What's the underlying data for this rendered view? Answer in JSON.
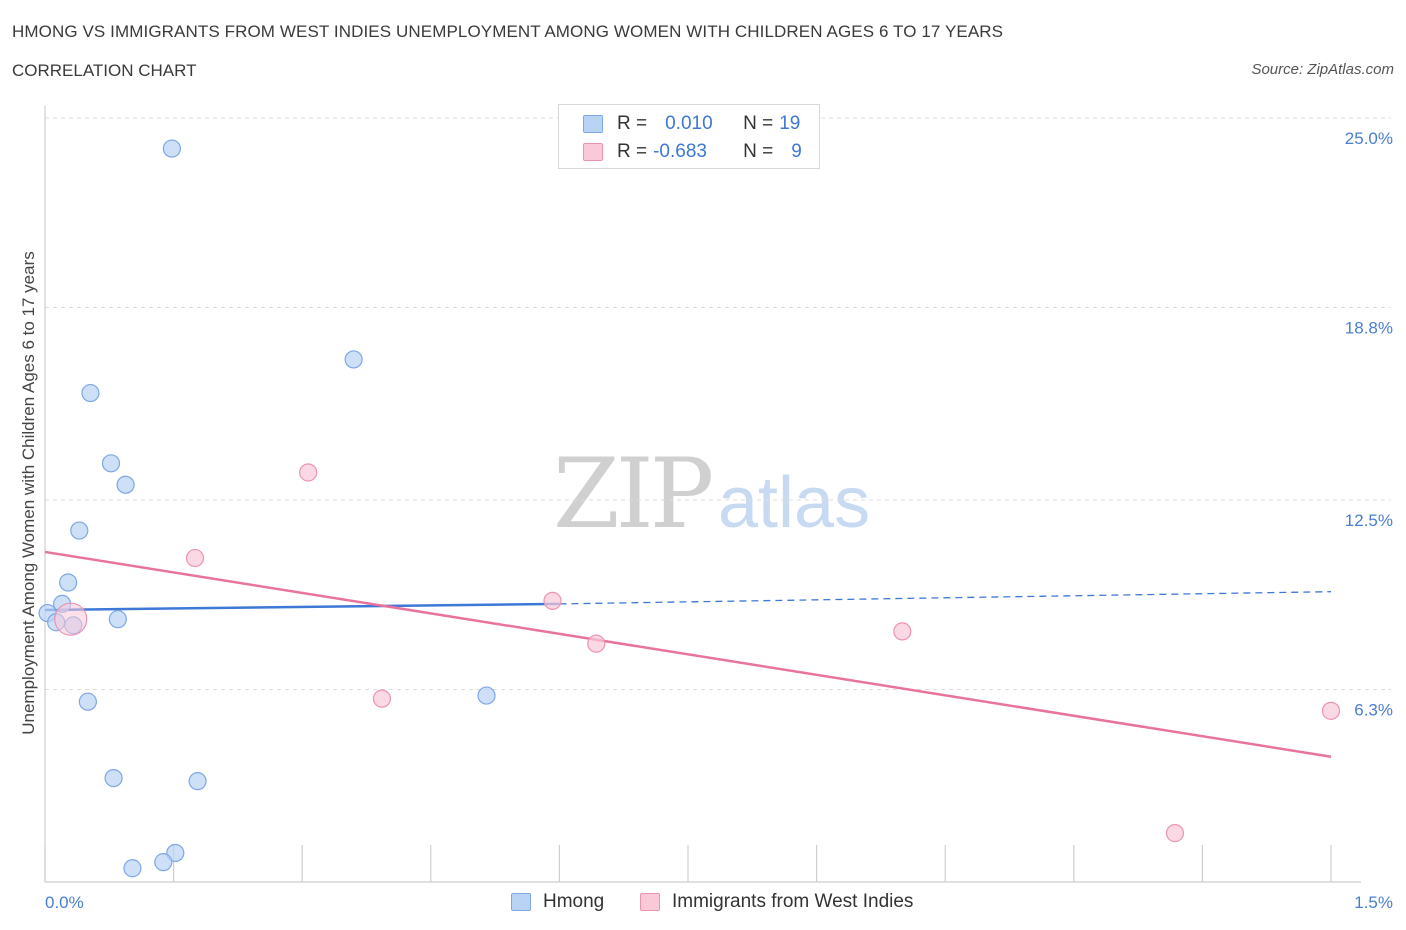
{
  "title": "HMONG VS IMMIGRANTS FROM WEST INDIES UNEMPLOYMENT AMONG WOMEN WITH CHILDREN AGES 6 TO 17 YEARS",
  "subtitle": "CORRELATION CHART",
  "source": "Source: ZipAtlas.com",
  "watermark": {
    "zip": "ZIP",
    "atlas": "atlas"
  },
  "legend_top": {
    "rows": [
      {
        "r_label": "R =",
        "r_value": "0.010",
        "n_label": "N =",
        "n_value": "19"
      },
      {
        "r_label": "R =",
        "r_value": "-0.683",
        "n_label": "N =",
        "n_value": "9"
      }
    ]
  },
  "legend_bottom": {
    "series1": "Hmong",
    "series2": "Immigrants from West Indies"
  },
  "colors": {
    "blue": "#3d78d6",
    "blue_fill": "#b9d3f5",
    "pink": "#e8739c",
    "pink_fill": "#f9c9d8"
  },
  "chart_data": {
    "type": "scatter",
    "xlabel": "",
    "ylabel": "Unemployment Among Women with Children Ages 6 to 17 years",
    "xlim": [
      0,
      1.5
    ],
    "ylim": [
      0,
      25
    ],
    "x_tick_labels": [
      "0.0%",
      "1.5%"
    ],
    "y_ticks": [
      6.3,
      12.5,
      18.8,
      25.0
    ],
    "y_tick_labels": [
      "6.3%",
      "12.5%",
      "18.8%",
      "25.0%"
    ],
    "series": [
      {
        "name": "Hmong",
        "color": "#3d78d6",
        "points": [
          [
            0.148,
            24.0
          ],
          [
            0.36,
            17.1
          ],
          [
            0.053,
            16.0
          ],
          [
            0.077,
            13.7
          ],
          [
            0.094,
            13.0
          ],
          [
            0.04,
            11.5
          ],
          [
            0.027,
            9.8
          ],
          [
            0.02,
            9.1
          ],
          [
            0.003,
            8.8
          ],
          [
            0.013,
            8.5
          ],
          [
            0.033,
            8.4
          ],
          [
            0.085,
            8.6
          ],
          [
            0.515,
            6.1
          ],
          [
            0.05,
            5.9
          ],
          [
            0.08,
            3.4
          ],
          [
            0.178,
            3.3
          ],
          [
            0.152,
            0.95
          ],
          [
            0.138,
            0.65
          ],
          [
            0.102,
            0.45
          ]
        ],
        "trend": {
          "x": [
            0.0,
            0.6
          ],
          "y": [
            8.9,
            9.1
          ],
          "dashed_to": [
            1.5,
            9.5
          ]
        }
      },
      {
        "name": "Immigrants from West Indies",
        "color": "#e8739c",
        "points": [
          [
            0.307,
            13.4
          ],
          [
            0.175,
            10.6
          ],
          [
            0.592,
            9.2
          ],
          [
            0.643,
            7.8
          ],
          [
            1.0,
            8.2
          ],
          [
            0.393,
            6.0
          ],
          [
            1.5,
            5.6
          ],
          [
            1.318,
            1.6
          ],
          [
            0.03,
            8.6
          ]
        ],
        "trend": {
          "x": [
            0.0,
            1.5
          ],
          "y": [
            10.8,
            4.1
          ]
        }
      }
    ]
  }
}
